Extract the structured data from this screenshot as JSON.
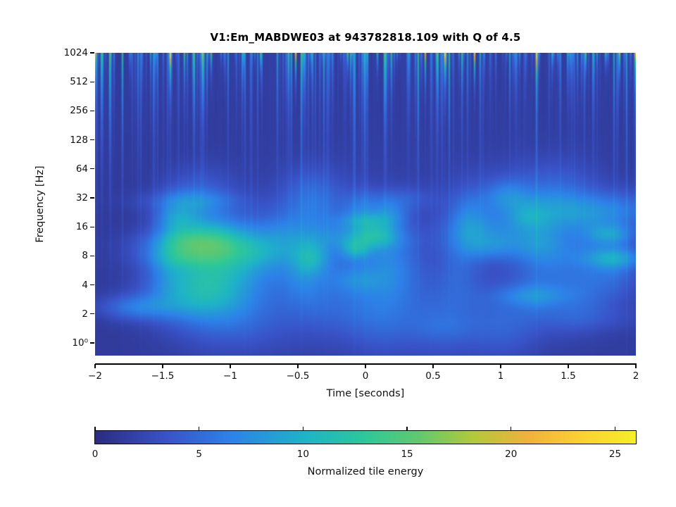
{
  "title": "V1:Em_MABDWE03 at 943782818.109 with Q of 4.5",
  "chart_data": {
    "type": "heatmap",
    "subtype": "q-transform-spectrogram",
    "title": "V1:Em_MABDWE03 at 943782818.109 with Q of 4.5",
    "xlabel": "Time [seconds]",
    "ylabel": "Frequency [Hz]",
    "xlim": [
      -2,
      2
    ],
    "x_ticks": [
      -2,
      -1.5,
      -1,
      -0.5,
      0,
      0.5,
      1,
      1.5,
      2
    ],
    "x_tick_labels": [
      "−2",
      "−1.5",
      "−1",
      "−0.5",
      "0",
      "0.5",
      "1",
      "1.5",
      "2"
    ],
    "y_scale": "log",
    "y_ticks_hz": [
      1024,
      512,
      256,
      128,
      64,
      32,
      16,
      8,
      4,
      2,
      1
    ],
    "y_tick_labels": [
      "1024",
      "512",
      "256",
      "128",
      "64",
      "32",
      "16",
      "8",
      "4",
      "2",
      "10⁰"
    ],
    "freq_top_hz": 1024,
    "grid": false,
    "colorbar": {
      "label": "Normalized tile energy",
      "ticks": [
        0,
        5,
        10,
        15,
        20,
        25
      ],
      "tick_labels": [
        "0",
        "5",
        "10",
        "15",
        "20",
        "25"
      ],
      "range": [
        0,
        26
      ],
      "colormap": "parula-like"
    },
    "colormap_stops": [
      [
        0.0,
        "#2b2d80"
      ],
      [
        0.13,
        "#3a53c8"
      ],
      [
        0.25,
        "#2e82e9"
      ],
      [
        0.385,
        "#1fb3c9"
      ],
      [
        0.5,
        "#2ec89b"
      ],
      [
        0.6,
        "#63c96f"
      ],
      [
        0.7,
        "#b3c93c"
      ],
      [
        0.8,
        "#f0b23c"
      ],
      [
        0.9,
        "#fdd133"
      ],
      [
        1.0,
        "#f6ef27"
      ]
    ],
    "background_energy": 1.3,
    "noise_seed": 943782818,
    "spikes": [
      {
        "t": -2.0,
        "energy": 12
      },
      {
        "t": -1.45,
        "energy": 26
      },
      {
        "t": -1.14,
        "energy": 15
      },
      {
        "t": -0.78,
        "energy": 12
      },
      {
        "t": -0.52,
        "energy": 20
      },
      {
        "t": -0.13,
        "energy": 13
      },
      {
        "t": 0.44,
        "energy": 16
      },
      {
        "t": 0.59,
        "energy": 26
      },
      {
        "t": 0.81,
        "energy": 23
      },
      {
        "t": 1.27,
        "energy": 21
      },
      {
        "t": 1.63,
        "energy": 14
      },
      {
        "t": 1.88,
        "energy": 18
      },
      {
        "t": 2.0,
        "energy": 9
      }
    ]
  }
}
